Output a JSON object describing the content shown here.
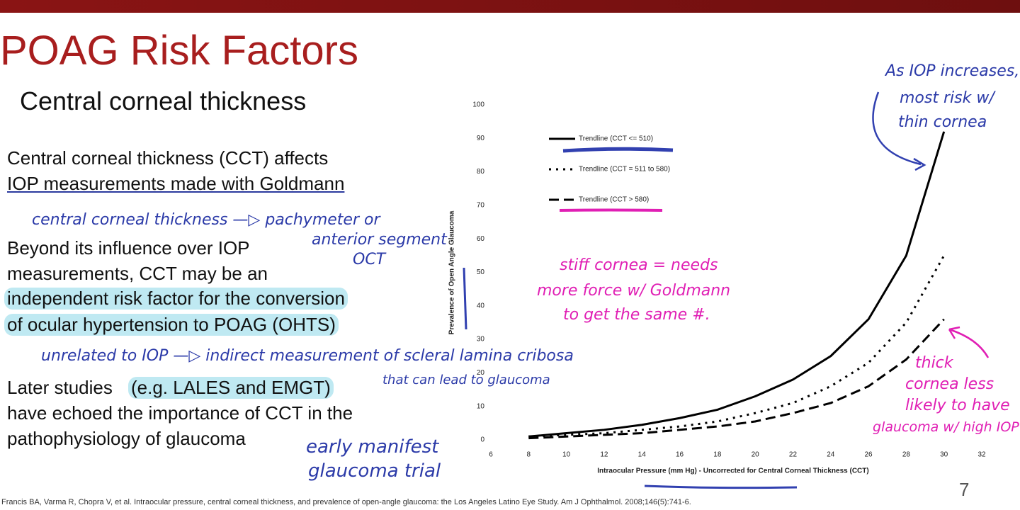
{
  "header": {
    "title": "POAG Risk Factors",
    "subtitle": "Central corneal thickness"
  },
  "body": [
    {
      "lines": [
        "Central corneal thickness (CCT) affects",
        "IOP measurements made with Goldmann"
      ]
    },
    {
      "lines": [
        "Beyond its influence over IOP",
        "measurements, CCT may be an",
        "independent risk factor for the conversion",
        "of ocular hypertension to POAG (OHTS)"
      ]
    },
    {
      "lines": [
        "Later studies",
        "(e.g. LALES and EMGT)",
        "have echoed the importance of CCT in the",
        "pathophysiology of glaucoma"
      ]
    }
  ],
  "annotations": [
    "central corneal thickness —▷ pachymeter or",
    "anterior segment",
    "OCT",
    "unrelated to IOP —▷ indirect measurement of scleral lamina cribosa",
    "that can lead to glaucoma",
    "early manifest",
    "glaucoma trial",
    "As IOP increases,",
    "most risk w/",
    "thin cornea",
    "stiff cornea = needs",
    "more force w/ Goldmann",
    "to get the same #.",
    "thick",
    "cornea less",
    "likely to have",
    "glaucoma w/ high IOP"
  ],
  "citation": "Francis BA, Varma R, Chopra V, et al. Intraocular pressure, central corneal thickness, and prevalence of open-angle glaucoma: the Los Angeles Latino Eye Study. Am J Ophthalmol. 2008;146(5):741-6.",
  "page_number": "7",
  "chart_data": {
    "type": "line",
    "x_label": "Intraocular Pressure (mm Hg) - Uncorrected for Central Corneal Thickness (CCT)",
    "y_label": "Prevalence of Open Angle Glaucoma",
    "x": [
      8,
      10,
      12,
      14,
      16,
      18,
      20,
      22,
      24,
      26,
      28,
      30
    ],
    "series": [
      {
        "name": "Trendline (CCT <= 510)",
        "color": "#000000",
        "style": "solid",
        "values": [
          1,
          2,
          3,
          4.5,
          6.5,
          9,
          13,
          18,
          25,
          36,
          55,
          92
        ]
      },
      {
        "name": "Trendline (CCT = 511 to 580)",
        "color": "#000000",
        "style": "dotted",
        "values": [
          1,
          1.5,
          2,
          3,
          4,
          5.5,
          8,
          11,
          16,
          23,
          35,
          55
        ]
      },
      {
        "name": "Trendline (CCT > 580)",
        "color": "#000000",
        "style": "dashed",
        "values": [
          0.5,
          1,
          1.5,
          2,
          3,
          4,
          5.5,
          8,
          11,
          16,
          24,
          36
        ]
      }
    ],
    "xlim": [
      6,
      32
    ],
    "xticks": [
      6,
      8,
      10,
      12,
      14,
      16,
      18,
      20,
      22,
      24,
      26,
      28,
      30,
      32
    ],
    "ylim": [
      0,
      100
    ],
    "yticks": [
      0,
      10,
      20,
      30,
      40,
      50,
      60,
      70,
      80,
      90,
      100
    ]
  }
}
